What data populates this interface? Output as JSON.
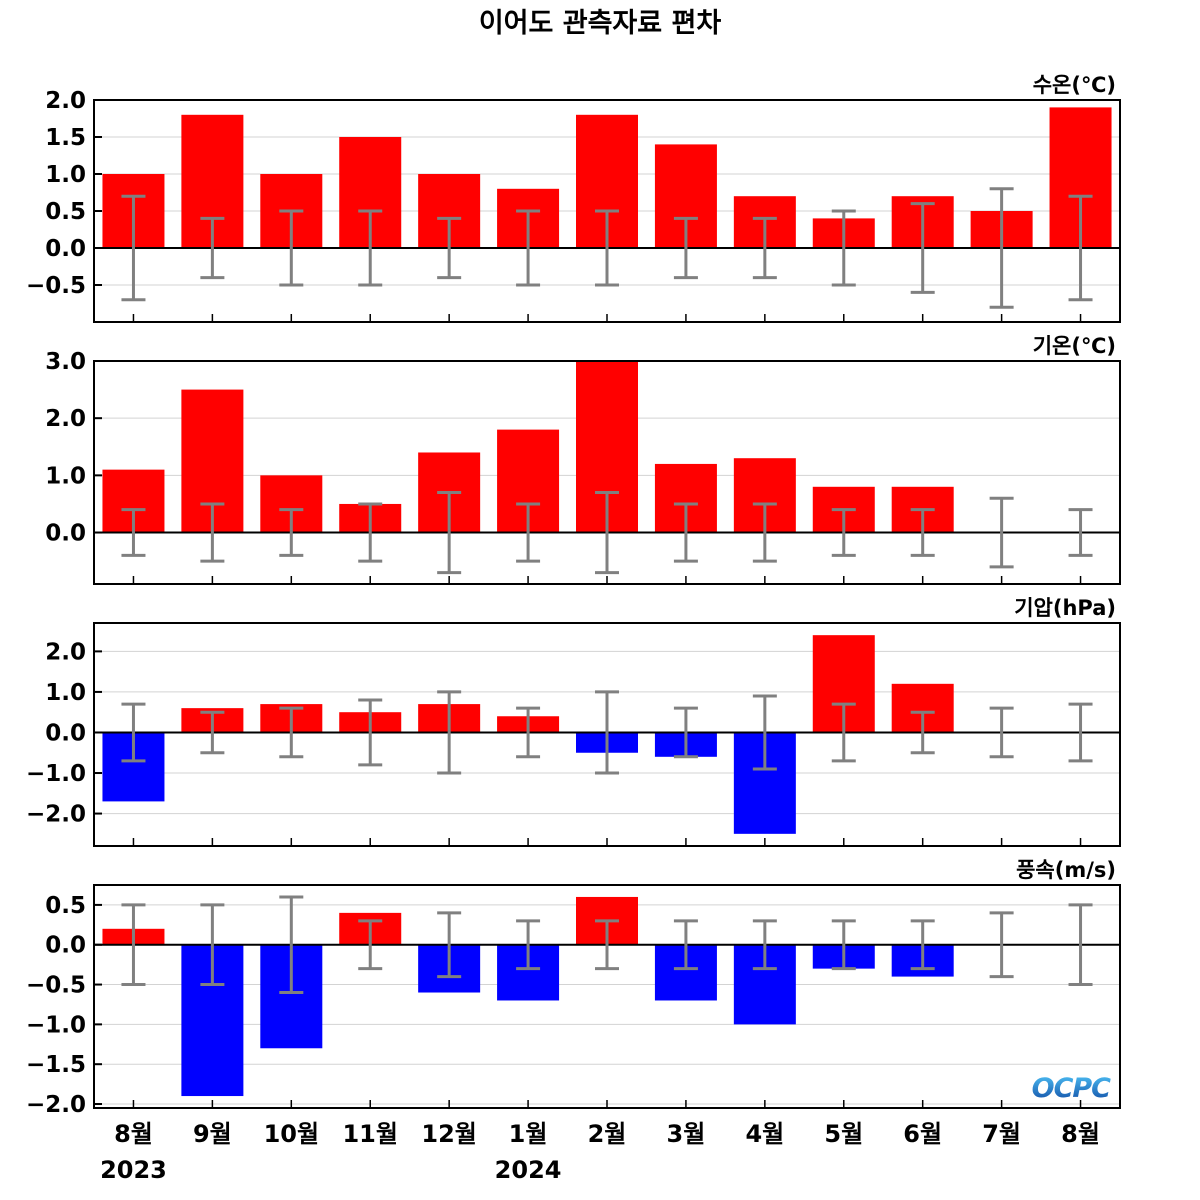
{
  "title": "이어도 관측자료 편차",
  "chart_data": {
    "type": "bar",
    "categories": [
      "8월",
      "9월",
      "10월",
      "11월",
      "12월",
      "1월",
      "2월",
      "3월",
      "4월",
      "5월",
      "6월",
      "7월",
      "8월"
    ],
    "years": [
      "2023",
      "2024"
    ],
    "colors": {
      "positive": "#ff0000",
      "negative": "#0000ff",
      "errorbar": "#808080",
      "grid": "#d3d3d3"
    },
    "logo": "OCPC",
    "panels": [
      {
        "title": "수온(℃)",
        "yticks": [
          "2.0",
          "1.5",
          "1.0",
          "0.5",
          "0.0",
          "−0.5"
        ],
        "ylim": [
          -1.0,
          2.0
        ],
        "values": [
          1.0,
          1.8,
          1.0,
          1.5,
          1.0,
          0.8,
          1.8,
          1.4,
          0.7,
          0.4,
          0.7,
          0.5,
          1.9
        ],
        "err_low": [
          -0.7,
          -0.4,
          -0.5,
          -0.5,
          -0.4,
          -0.5,
          -0.5,
          -0.4,
          -0.4,
          -0.5,
          -0.6,
          -0.8,
          -0.7
        ],
        "err_high": [
          0.7,
          0.4,
          0.5,
          0.5,
          0.4,
          0.5,
          0.5,
          0.4,
          0.4,
          0.5,
          0.6,
          0.8,
          0.7
        ]
      },
      {
        "title": "기온(℃)",
        "yticks": [
          "3.0",
          "2.0",
          "1.0",
          "0.0"
        ],
        "ylim": [
          -0.9,
          3.0
        ],
        "values": [
          1.1,
          2.5,
          1.0,
          0.5,
          1.4,
          1.8,
          3.0,
          1.2,
          1.3,
          0.8,
          0.8,
          0.0,
          0.0
        ],
        "err_low": [
          -0.4,
          -0.5,
          -0.4,
          -0.5,
          -0.7,
          -0.5,
          -0.7,
          -0.5,
          -0.5,
          -0.4,
          -0.4,
          -0.6,
          -0.4
        ],
        "err_high": [
          0.4,
          0.5,
          0.4,
          0.5,
          0.7,
          0.5,
          0.7,
          0.5,
          0.5,
          0.4,
          0.4,
          0.6,
          0.4
        ]
      },
      {
        "title": "기압(hPa)",
        "yticks": [
          "2.0",
          "1.0",
          "0.0",
          "−1.0",
          "−2.0"
        ],
        "ylim": [
          -2.8,
          2.7
        ],
        "values": [
          -1.7,
          0.6,
          0.7,
          0.5,
          0.7,
          0.4,
          -0.5,
          -0.6,
          -2.5,
          2.4,
          1.2,
          0.0,
          0.0
        ],
        "err_low": [
          -0.7,
          -0.5,
          -0.6,
          -0.8,
          -1.0,
          -0.6,
          -1.0,
          -0.6,
          -0.9,
          -0.7,
          -0.5,
          -0.6,
          -0.7
        ],
        "err_high": [
          0.7,
          0.5,
          0.6,
          0.8,
          1.0,
          0.6,
          1.0,
          0.6,
          0.9,
          0.7,
          0.5,
          0.6,
          0.7
        ]
      },
      {
        "title": "풍속(m/s)",
        "yticks": [
          "0.5",
          "0.0",
          "−0.5",
          "−1.0",
          "−1.5",
          "−2.0"
        ],
        "ylim": [
          -2.05,
          0.75
        ],
        "values": [
          0.2,
          -1.9,
          -1.3,
          0.4,
          -0.6,
          -0.7,
          0.6,
          -0.7,
          -1.0,
          -0.3,
          -0.4,
          0.0,
          0.0
        ],
        "err_low": [
          -0.5,
          -0.5,
          -0.6,
          -0.3,
          -0.4,
          -0.3,
          -0.3,
          -0.3,
          -0.3,
          -0.3,
          -0.3,
          -0.4,
          -0.5
        ],
        "err_high": [
          0.5,
          0.5,
          0.6,
          0.3,
          0.4,
          0.3,
          0.3,
          0.3,
          0.3,
          0.3,
          0.3,
          0.4,
          0.5
        ]
      }
    ]
  }
}
